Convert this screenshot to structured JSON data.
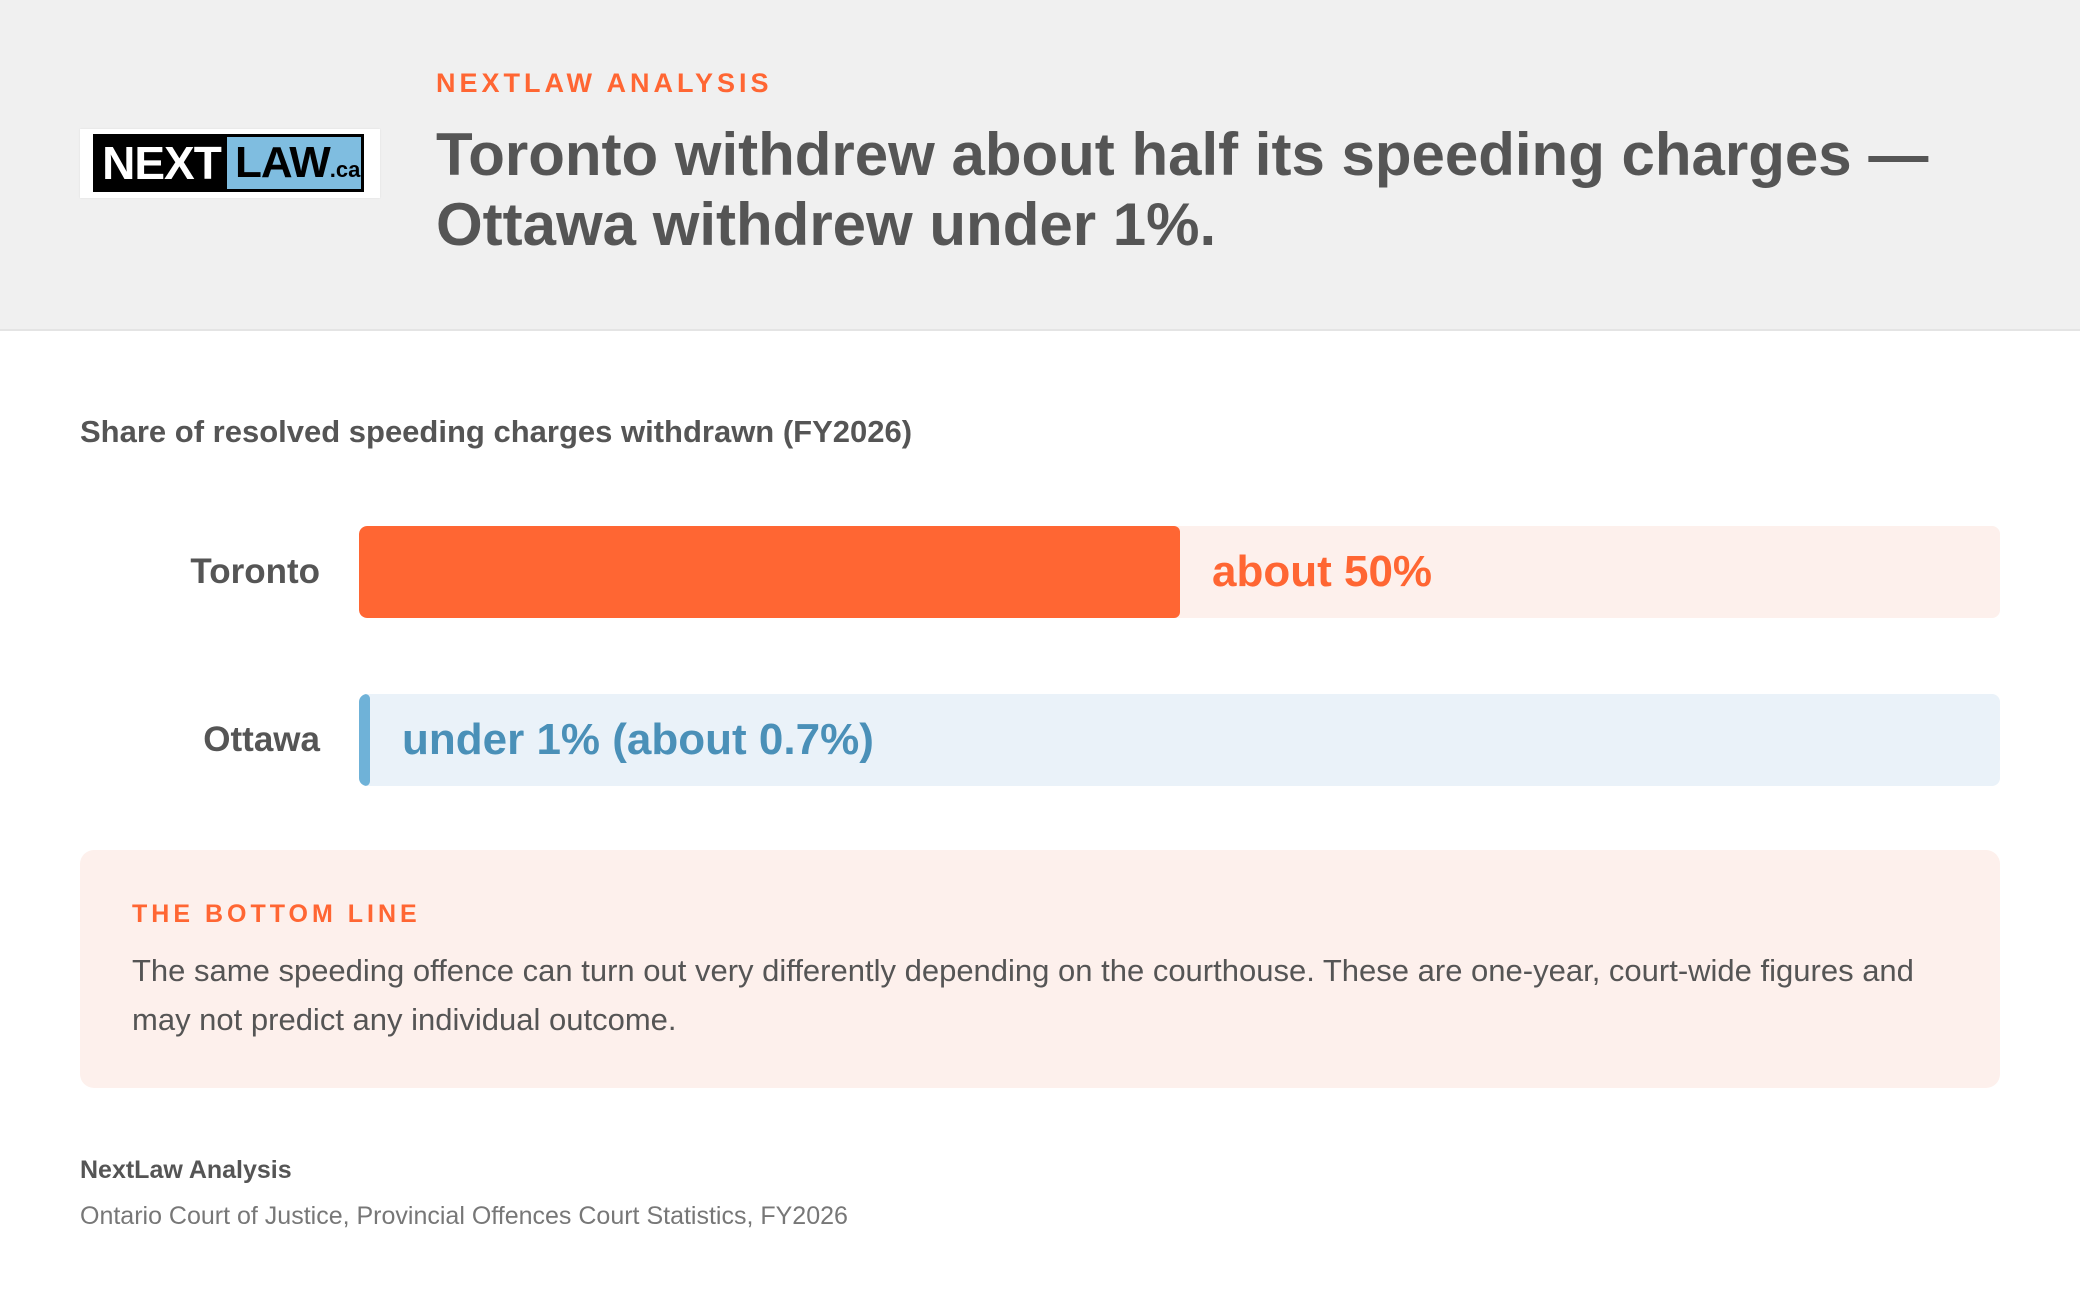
{
  "header": {
    "logo": {
      "next": "NEXT",
      "law": "LAW",
      "suffix": ".ca"
    },
    "kicker": "NEXTLAW ANALYSIS",
    "headline": "Toronto withdrew about half its speeding charges — Ottawa withdrew under 1%."
  },
  "chart_data": {
    "type": "bar",
    "orientation": "horizontal",
    "title": "Share of resolved speeding charges withdrawn (FY2026)",
    "categories": [
      "Toronto",
      "Ottawa"
    ],
    "values": [
      50,
      0.7
    ],
    "value_labels": [
      "about 50%",
      "under 1% (about 0.7%)"
    ],
    "xlim": [
      0,
      100
    ],
    "grid": false,
    "colors": [
      "#ff6633",
      "#6fb2d8"
    ],
    "track_colors": [
      "#fdf0ec",
      "#eaf2f9"
    ],
    "label_colors": [
      "#ff6633",
      "#4a90b8"
    ]
  },
  "callout": {
    "title": "THE BOTTOM LINE",
    "text": "The same speeding offence can turn out very differently depending on the courthouse. These are one-year, court-wide figures and may not predict any individual outcome."
  },
  "source": {
    "title": "NextLaw Analysis",
    "text": "Ontario Court of Justice, Provincial Offences Court Statistics, FY2026"
  }
}
